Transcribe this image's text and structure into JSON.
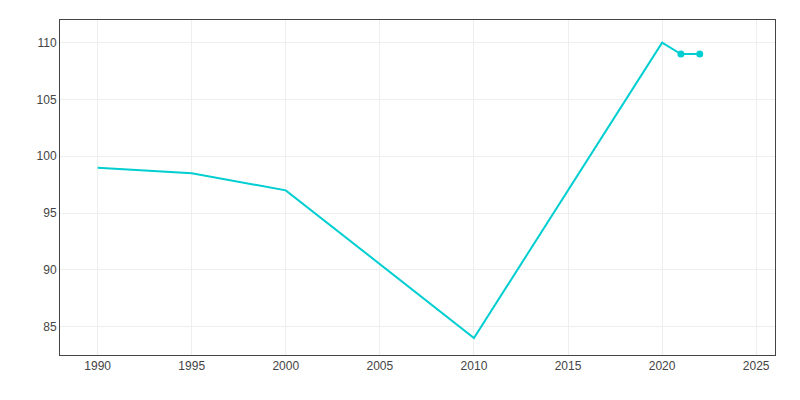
{
  "chart_data": {
    "type": "line",
    "x": [
      1990,
      1995,
      2000,
      2010,
      2020,
      2021,
      2022
    ],
    "series": [
      {
        "type": "line",
        "color": "#00CED1",
        "values": [
          99,
          98.5,
          97,
          84,
          110,
          109,
          109
        ]
      },
      {
        "type": "scatter",
        "marker": "circle",
        "color": "#00CED1",
        "values": [
          null,
          null,
          null,
          null,
          null,
          109,
          109
        ]
      }
    ],
    "xlim": [
      1988,
      2026
    ],
    "xticks": [
      1990,
      1995,
      2000,
      2005,
      2010,
      2015,
      2020,
      2025
    ],
    "ylim": [
      82.5,
      112
    ],
    "yticks": [
      85,
      90,
      95,
      100,
      105,
      110
    ],
    "grid": true
  }
}
